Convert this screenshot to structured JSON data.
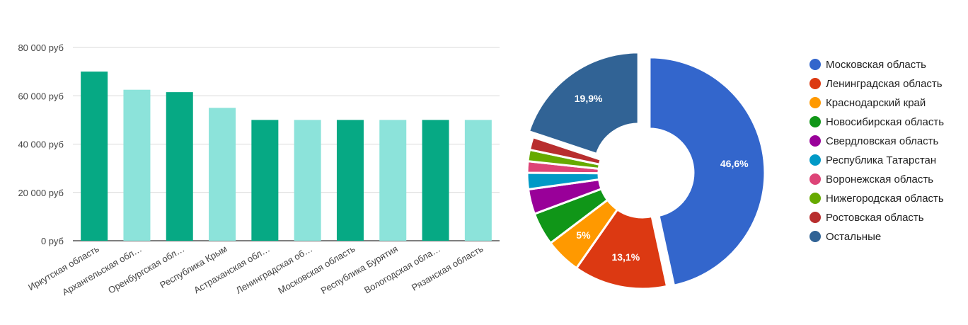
{
  "colors": {
    "bar_dark": "#06a984",
    "bar_light": "#8ce3da",
    "grid": "#d9d9d9",
    "axis_text": "#444444",
    "legend_text": "#222222",
    "donut_label": "#ffffff"
  },
  "chart_data": [
    {
      "type": "bar",
      "categories": [
        "Иркутская область",
        "Архангельская обл…",
        "Оренбургская обл…",
        "Республика Крым",
        "Астраханская обл…",
        "Ленинградская об…",
        "Московская область",
        "Республика Бурятия",
        "Вологодская обла…",
        "Рязанская область"
      ],
      "values": [
        70000,
        62500,
        61500,
        55000,
        50000,
        50000,
        50000,
        50000,
        50000,
        50000
      ],
      "bar_colors": [
        "#06a984",
        "#8ce3da",
        "#06a984",
        "#8ce3da",
        "#06a984",
        "#8ce3da",
        "#06a984",
        "#8ce3da",
        "#06a984",
        "#8ce3da"
      ],
      "ylim": [
        0,
        80000
      ],
      "yticks": [
        0,
        20000,
        40000,
        60000,
        80000
      ],
      "ytick_labels": [
        "0 руб",
        "20 000 руб",
        "40 000 руб",
        "60 000 руб",
        "80 000 руб"
      ],
      "grid": true,
      "title": "",
      "xlabel": "",
      "ylabel": ""
    },
    {
      "type": "pie",
      "donut": true,
      "legend_position": "right",
      "slices": [
        {
          "label": "Московская область",
          "value": 46.6,
          "color": "#3366cc",
          "display": "46,6%",
          "exploded": true
        },
        {
          "label": "Ленинградская область",
          "value": 13.1,
          "color": "#dc3912",
          "display": "13,1%",
          "exploded": false
        },
        {
          "label": "Краснодарский край",
          "value": 5.0,
          "color": "#ff9900",
          "display": "5%",
          "exploded": false
        },
        {
          "label": "Новосибирская область",
          "value": 4.6,
          "color": "#109618",
          "display": "",
          "exploded": false
        },
        {
          "label": "Свердловская область",
          "value": 3.5,
          "color": "#990099",
          "display": "",
          "exploded": false
        },
        {
          "label": "Республика Татарстан",
          "value": 2.3,
          "color": "#0099c6",
          "display": "",
          "exploded": false
        },
        {
          "label": "Воронежская область",
          "value": 1.6,
          "color": "#dd4477",
          "display": "",
          "exploded": false
        },
        {
          "label": "Нижегородская область",
          "value": 1.6,
          "color": "#66aa00",
          "display": "",
          "exploded": false
        },
        {
          "label": "Ростовская область",
          "value": 1.8,
          "color": "#b82e2e",
          "display": "",
          "exploded": false
        },
        {
          "label": "Остальные",
          "value": 19.9,
          "color": "#316395",
          "display": "19,9%",
          "exploded": true
        }
      ]
    }
  ]
}
